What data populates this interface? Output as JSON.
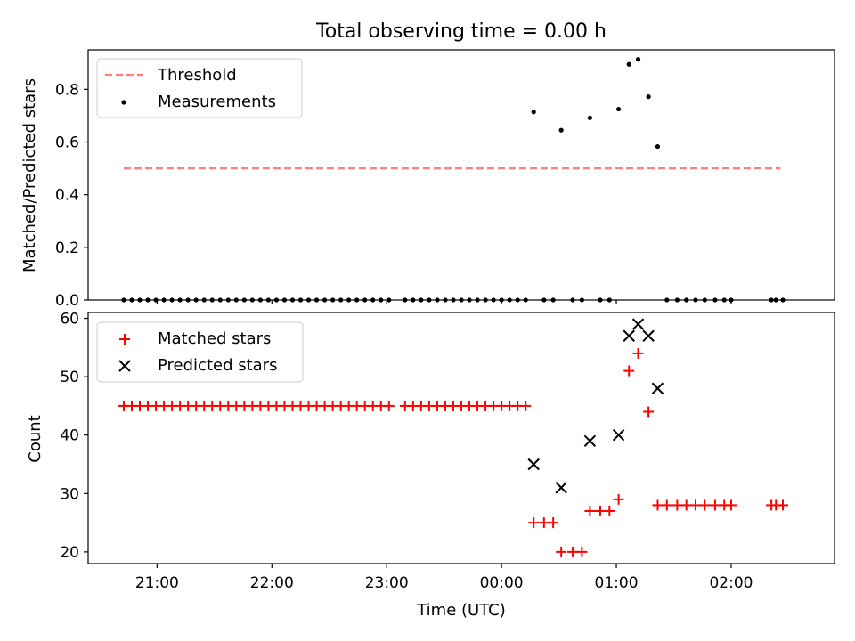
{
  "chart_data": [
    {
      "type": "scatter",
      "title": "Total observing time = 0.00 h",
      "xlabel": "",
      "ylabel": "Matched/Predicted stars",
      "xlim": [
        20.4,
        26.9
      ],
      "ylim": [
        0,
        0.95
      ],
      "yticks": [
        0.0,
        0.2,
        0.4,
        0.6,
        0.8
      ],
      "ytick_labels": [
        "0.0",
        "0.2",
        "0.4",
        "0.6",
        "0.8"
      ],
      "legend": "upper left",
      "threshold": {
        "name": "Threshold",
        "value": 0.5,
        "x_start": 20.71,
        "x_end": 26.43,
        "color": "#ff7f7f",
        "style": "dashed"
      },
      "series": [
        {
          "name": "Measurements",
          "marker": "dot",
          "color": "#000000",
          "x": [
            20.71,
            20.78,
            20.85,
            20.92,
            20.99,
            21.06,
            21.13,
            21.2,
            21.27,
            21.34,
            21.41,
            21.48,
            21.55,
            21.62,
            21.69,
            21.76,
            21.83,
            21.9,
            21.97,
            22.04,
            22.11,
            22.18,
            22.25,
            22.32,
            22.39,
            22.46,
            22.53,
            22.6,
            22.67,
            22.74,
            22.81,
            22.88,
            22.95,
            23.02,
            23.16,
            23.23,
            23.3,
            23.37,
            23.44,
            23.51,
            23.58,
            23.65,
            23.72,
            23.79,
            23.86,
            23.93,
            24.0,
            24.07,
            24.14,
            24.21,
            24.28,
            24.37,
            24.45,
            24.52,
            24.62,
            24.7,
            24.77,
            24.86,
            24.94,
            25.02,
            25.11,
            25.19,
            25.28,
            25.36,
            25.44,
            25.53,
            25.61,
            25.69,
            25.77,
            25.86,
            25.94,
            26.0,
            26.35,
            26.39,
            26.45
          ],
          "y": [
            0,
            0,
            0,
            0,
            0,
            0,
            0,
            0,
            0,
            0,
            0,
            0,
            0,
            0,
            0,
            0,
            0,
            0,
            0,
            0,
            0,
            0,
            0,
            0,
            0,
            0,
            0,
            0,
            0,
            0,
            0,
            0,
            0,
            0,
            0,
            0,
            0,
            0,
            0,
            0,
            0,
            0,
            0,
            0,
            0,
            0,
            0,
            0,
            0,
            0,
            0.714,
            0,
            0,
            0.645,
            0,
            0,
            0.692,
            0,
            0,
            0.725,
            0.895,
            0.914,
            0.772,
            0.583,
            0,
            0,
            0,
            0,
            0,
            0,
            0,
            0,
            0,
            0,
            0
          ]
        }
      ]
    },
    {
      "type": "scatter",
      "title": "",
      "xlabel": "Time (UTC)",
      "ylabel": "Count",
      "xlim": [
        20.4,
        26.9
      ],
      "ylim": [
        18,
        61
      ],
      "yticks": [
        20,
        30,
        40,
        50,
        60
      ],
      "ytick_labels": [
        "20",
        "30",
        "40",
        "50",
        "60"
      ],
      "xticks": [
        21,
        22,
        23,
        24,
        25,
        26
      ],
      "xtick_labels": [
        "21:00",
        "22:00",
        "23:00",
        "00:00",
        "01:00",
        "02:00"
      ],
      "legend": "upper left",
      "series": [
        {
          "name": "Matched stars",
          "marker": "plus",
          "color": "#ff0000",
          "x": [
            20.71,
            20.78,
            20.85,
            20.92,
            20.99,
            21.06,
            21.13,
            21.2,
            21.27,
            21.34,
            21.41,
            21.48,
            21.55,
            21.62,
            21.69,
            21.76,
            21.83,
            21.9,
            21.97,
            22.04,
            22.11,
            22.18,
            22.25,
            22.32,
            22.39,
            22.46,
            22.53,
            22.6,
            22.67,
            22.74,
            22.81,
            22.88,
            22.95,
            23.02,
            23.16,
            23.23,
            23.3,
            23.37,
            23.44,
            23.51,
            23.58,
            23.65,
            23.72,
            23.79,
            23.86,
            23.93,
            24.0,
            24.07,
            24.14,
            24.21,
            24.28,
            24.37,
            24.45,
            24.52,
            24.62,
            24.7,
            24.77,
            24.86,
            24.94,
            25.02,
            25.11,
            25.19,
            25.28,
            25.36,
            25.44,
            25.53,
            25.61,
            25.69,
            25.77,
            25.86,
            25.94,
            26.0,
            26.35,
            26.39,
            26.45
          ],
          "y": [
            45,
            45,
            45,
            45,
            45,
            45,
            45,
            45,
            45,
            45,
            45,
            45,
            45,
            45,
            45,
            45,
            45,
            45,
            45,
            45,
            45,
            45,
            45,
            45,
            45,
            45,
            45,
            45,
            45,
            45,
            45,
            45,
            45,
            45,
            45,
            45,
            45,
            45,
            45,
            45,
            45,
            45,
            45,
            45,
            45,
            45,
            45,
            45,
            45,
            45,
            25,
            25,
            25,
            20,
            20,
            20,
            27,
            27,
            27,
            29,
            51,
            54,
            44,
            28,
            28,
            28,
            28,
            28,
            28,
            28,
            28,
            28,
            28,
            28,
            28
          ]
        },
        {
          "name": "Predicted stars",
          "marker": "x",
          "color": "#000000",
          "x": [
            24.28,
            24.52,
            24.77,
            25.02,
            25.11,
            25.19,
            25.28,
            25.36
          ],
          "y": [
            35,
            31,
            39,
            40,
            57,
            59,
            57,
            48
          ]
        }
      ]
    }
  ]
}
